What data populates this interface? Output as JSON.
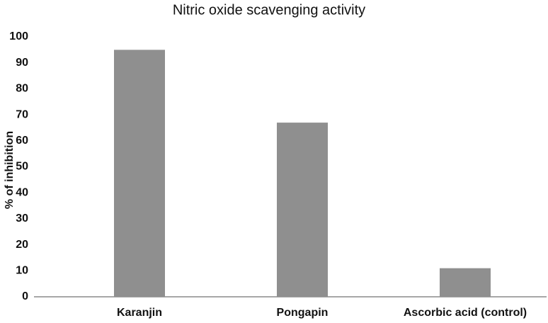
{
  "chart_data": {
    "type": "bar",
    "title": "Nitric oxide scavenging activity",
    "y_label": "% of inhibition",
    "categories": [
      "Karanjin",
      "Pongapin",
      "Ascorbic acid (control)"
    ],
    "values": [
      95,
      67,
      11
    ],
    "color": "#8f8f8f",
    "ylim": [
      0,
      100
    ],
    "yticks": [
      0,
      10,
      20,
      30,
      40,
      50,
      60,
      70,
      80,
      90,
      100
    ],
    "grid": false
  }
}
